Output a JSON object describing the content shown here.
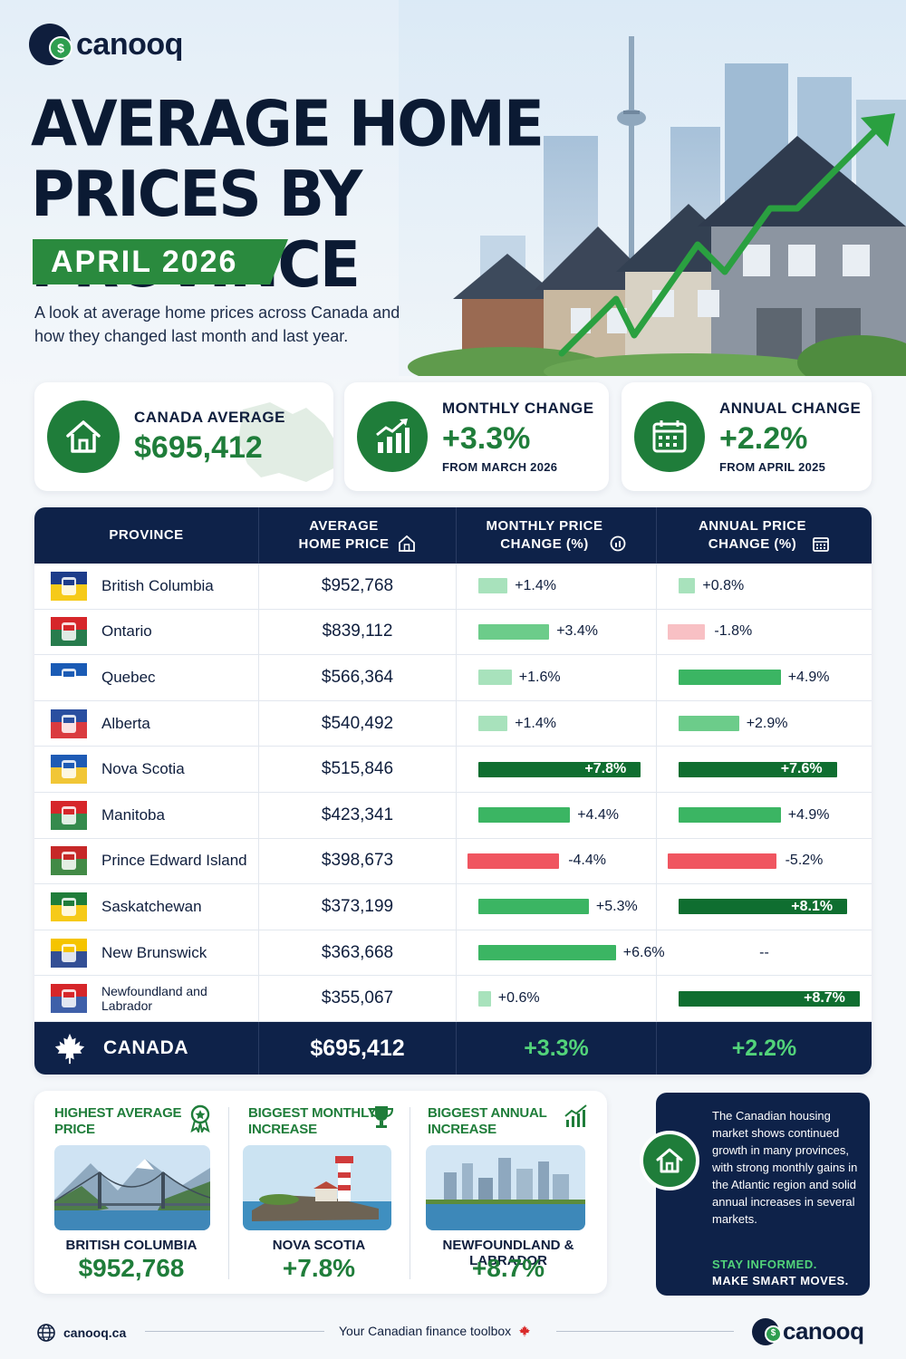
{
  "brand": {
    "name": "canooq",
    "site": "canooq.ca",
    "tagline": "Your Canadian finance toolbox"
  },
  "header": {
    "title_line1": "AVERAGE HOME",
    "title_line2": "PRICES BY PROVINCE",
    "date": "APRIL 2026",
    "subtitle": "A look at average home prices across Canada and how they changed last month and last year."
  },
  "stats": {
    "canada_average": {
      "label": "CANADA AVERAGE",
      "value": "$695,412",
      "icon": "house-icon"
    },
    "monthly_change": {
      "label": "MONTHLY CHANGE",
      "value": "+3.3%",
      "sub": "FROM MARCH 2026",
      "icon": "bar-chart-up-icon"
    },
    "annual_change": {
      "label": "ANNUAL CHANGE",
      "value": "+2.2%",
      "sub": "FROM APRIL 2025",
      "icon": "calendar-icon"
    }
  },
  "table": {
    "headers": {
      "province": "PROVINCE",
      "price_l1": "AVERAGE",
      "price_l2": "HOME PRICE",
      "monthly_l1": "MONTHLY PRICE",
      "monthly_l2": "CHANGE (%)",
      "annual_l1": "ANNUAL PRICE",
      "annual_l2": "CHANGE (%)"
    },
    "rows": [
      {
        "province": "British Columbia",
        "price": "$952,768",
        "monthly": 1.4,
        "monthly_label": "+1.4%",
        "annual": 0.8,
        "annual_label": "+0.8%"
      },
      {
        "province": "Ontario",
        "price": "$839,112",
        "monthly": 3.4,
        "monthly_label": "+3.4%",
        "annual": -1.8,
        "annual_label": "-1.8%"
      },
      {
        "province": "Quebec",
        "price": "$566,364",
        "monthly": 1.6,
        "monthly_label": "+1.6%",
        "annual": 4.9,
        "annual_label": "+4.9%"
      },
      {
        "province": "Alberta",
        "price": "$540,492",
        "monthly": 1.4,
        "monthly_label": "+1.4%",
        "annual": 2.9,
        "annual_label": "+2.9%"
      },
      {
        "province": "Nova Scotia",
        "price": "$515,846",
        "monthly": 7.8,
        "monthly_label": "+7.8%",
        "annual": 7.6,
        "annual_label": "+7.6%"
      },
      {
        "province": "Manitoba",
        "price": "$423,341",
        "monthly": 4.4,
        "monthly_label": "+4.4%",
        "annual": 4.9,
        "annual_label": "+4.9%"
      },
      {
        "province": "Prince Edward Island",
        "price": "$398,673",
        "monthly": -4.4,
        "monthly_label": "-4.4%",
        "annual": -5.2,
        "annual_label": "-5.2%"
      },
      {
        "province": "Saskatchewan",
        "price": "$373,199",
        "monthly": 5.3,
        "monthly_label": "+5.3%",
        "annual": 8.1,
        "annual_label": "+8.1%"
      },
      {
        "province": "New Brunswick",
        "price": "$363,668",
        "monthly": 6.6,
        "monthly_label": "+6.6%",
        "annual": null,
        "annual_label": "--"
      },
      {
        "province": "Newfoundland and Labrador",
        "price": "$355,067",
        "monthly": 0.6,
        "monthly_label": "+0.6%",
        "annual": 8.7,
        "annual_label": "+8.7%"
      }
    ],
    "total": {
      "name": "CANADA",
      "price": "$695,412",
      "monthly": "+3.3%",
      "annual": "+2.2%"
    }
  },
  "highlights": [
    {
      "title_l1": "HIGHEST AVERAGE",
      "title_l2": "PRICE",
      "place": "BRITISH COLUMBIA",
      "value": "$952,768",
      "icon": "award-ribbon-icon"
    },
    {
      "title_l1": "BIGGEST MONTHLY",
      "title_l2": "INCREASE",
      "place": "NOVA SCOTIA",
      "value": "+7.8%",
      "icon": "trophy-icon"
    },
    {
      "title_l1": "BIGGEST ANNUAL",
      "title_l2": "INCREASE",
      "place": "NEWFOUNDLAND & LABRADOR",
      "value": "+8.7%",
      "icon": "growth-chart-icon"
    }
  ],
  "info": {
    "text": "The Canadian housing market shows continued growth in many provinces, with strong monthly gains in the Atlantic region and solid annual increases in several markets.",
    "cta1": "STAY INFORMED.",
    "cta2": "MAKE SMART MOVES."
  },
  "colors": {
    "navy": "#0e2249",
    "green": "#1f7d3a",
    "bright_green": "#52d37a",
    "red": "#f05560"
  }
}
